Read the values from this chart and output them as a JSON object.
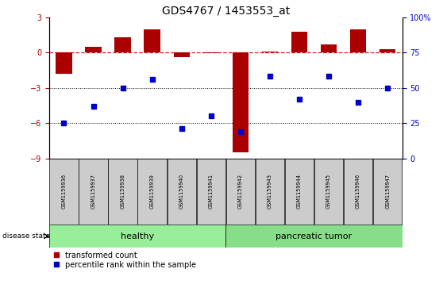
{
  "title": "GDS4767 / 1453553_at",
  "samples": [
    "GSM1159936",
    "GSM1159937",
    "GSM1159938",
    "GSM1159939",
    "GSM1159940",
    "GSM1159941",
    "GSM1159942",
    "GSM1159943",
    "GSM1159944",
    "GSM1159945",
    "GSM1159946",
    "GSM1159947"
  ],
  "red_bars": [
    -1.8,
    0.5,
    1.3,
    2.0,
    -0.4,
    -0.05,
    -8.5,
    0.1,
    1.8,
    0.7,
    2.0,
    0.3
  ],
  "blue_right": [
    25,
    37,
    50,
    56,
    21,
    30,
    19,
    58,
    42,
    58,
    40,
    50
  ],
  "ylim_left": [
    -9,
    3
  ],
  "ylim_right": [
    0,
    100
  ],
  "yticks_left": [
    -9,
    -6,
    -3,
    0,
    3
  ],
  "yticks_right": [
    0,
    25,
    50,
    75,
    100
  ],
  "healthy_count": 6,
  "tumor_count": 6,
  "healthy_color": "#99EE99",
  "tumor_color": "#88DD88",
  "bar_color": "#AA0000",
  "dot_color": "#0000CC",
  "bg_color": "#FFFFFF",
  "dashed_line_color": "#CC2222",
  "tick_label_color_left": "#AA0000",
  "tick_label_color_right": "#0000CC",
  "title_fontsize": 10,
  "label_fontsize": 4.8,
  "group_fontsize": 8,
  "legend_fontsize": 7
}
